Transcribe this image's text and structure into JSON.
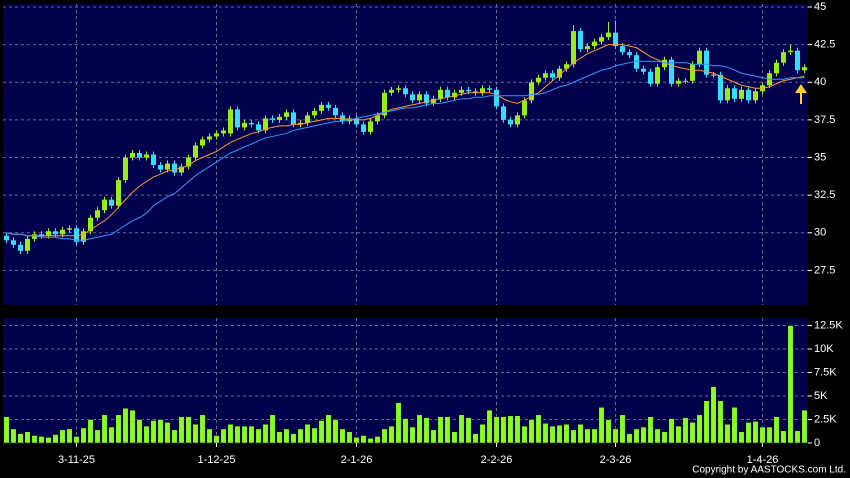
{
  "chart_data": [
    {
      "type": "candlestick",
      "open": [
        29.8,
        29.5,
        29.2,
        28.8,
        29.6,
        29.9,
        29.8,
        30.1,
        29.9,
        30.2,
        30.3,
        29.4,
        30.1,
        31.0,
        31.5,
        32.2,
        31.8,
        33.5,
        35.0,
        35.3,
        35.0,
        35.2,
        34.5,
        34.2,
        34.6,
        34.0,
        34.4,
        35.0,
        35.8,
        36.2,
        36.4,
        36.6,
        36.6,
        38.2,
        37.0,
        37.3,
        37.2,
        36.8,
        37.6,
        37.5,
        37.7,
        38.0,
        37.2,
        37.3,
        37.8,
        38.1,
        38.5,
        38.3,
        37.8,
        37.4,
        37.6,
        37.2,
        36.7,
        37.4,
        37.8,
        39.3,
        39.5,
        39.6,
        39.2,
        38.8,
        39.2,
        38.6,
        38.9,
        39.5,
        39.0,
        39.3,
        39.5,
        39.4,
        39.3,
        39.6,
        39.5,
        38.4,
        37.5,
        37.2,
        37.8,
        38.8,
        40.0,
        40.3,
        40.6,
        40.3,
        40.9,
        41.2,
        43.4,
        42.2,
        42.4,
        42.7,
        43.0,
        43.3,
        42.4,
        42.0,
        41.8,
        40.9,
        40.7,
        39.9,
        41.0,
        41.5,
        39.9,
        40.1,
        40.1,
        41.2,
        42.1,
        40.5,
        40.5,
        38.8,
        39.6,
        38.9,
        39.5,
        38.8,
        39.4,
        39.8,
        40.6,
        41.3,
        42.0,
        42.1,
        40.8
      ],
      "high": [
        30.0,
        29.7,
        29.4,
        29.8,
        30.1,
        30.1,
        30.3,
        30.3,
        30.4,
        30.5,
        30.5,
        30.3,
        31.2,
        31.7,
        32.4,
        32.4,
        33.7,
        35.2,
        35.5,
        35.5,
        35.4,
        35.4,
        34.7,
        34.8,
        34.8,
        34.6,
        35.2,
        36.0,
        36.4,
        36.6,
        36.8,
        37.0,
        38.4,
        38.4,
        37.5,
        37.5,
        37.4,
        37.8,
        37.8,
        37.9,
        38.2,
        38.2,
        37.5,
        38.0,
        38.3,
        38.7,
        38.7,
        38.5,
        38.0,
        37.8,
        37.8,
        37.4,
        37.6,
        38.0,
        39.5,
        39.7,
        39.8,
        39.8,
        39.4,
        39.4,
        39.4,
        39.1,
        39.7,
        39.7,
        39.5,
        39.7,
        39.7,
        39.6,
        39.8,
        39.8,
        39.7,
        38.6,
        37.7,
        38.0,
        39.0,
        40.2,
        40.5,
        40.8,
        40.8,
        41.1,
        41.4,
        43.8,
        43.6,
        42.6,
        42.9,
        43.2,
        44.0,
        44.1,
        42.6,
        42.2,
        42.0,
        41.1,
        40.9,
        41.2,
        41.7,
        41.7,
        40.3,
        40.3,
        41.4,
        42.3,
        42.3,
        40.7,
        40.7,
        39.8,
        39.8,
        39.7,
        39.7,
        39.6,
        40.0,
        40.8,
        41.5,
        42.2,
        42.5,
        42.3,
        41.2
      ],
      "low": [
        29.3,
        29.0,
        28.6,
        28.6,
        29.4,
        29.6,
        29.6,
        29.7,
        29.7,
        30.0,
        29.2,
        29.2,
        29.9,
        30.8,
        31.3,
        31.6,
        31.6,
        33.3,
        34.8,
        34.8,
        34.8,
        34.3,
        34.0,
        34.0,
        33.8,
        33.8,
        34.2,
        34.8,
        35.6,
        36.0,
        36.2,
        36.4,
        36.4,
        36.8,
        36.8,
        37.0,
        36.6,
        36.6,
        37.3,
        37.3,
        37.5,
        37.0,
        37.0,
        37.1,
        37.6,
        37.9,
        38.1,
        37.6,
        37.2,
        37.2,
        37.0,
        36.5,
        36.5,
        37.2,
        37.6,
        39.1,
        39.3,
        39.0,
        38.6,
        38.6,
        38.4,
        38.4,
        38.7,
        38.8,
        38.8,
        39.1,
        39.2,
        39.1,
        39.1,
        39.3,
        38.2,
        37.3,
        37.0,
        37.0,
        37.6,
        38.6,
        39.8,
        40.1,
        40.1,
        40.1,
        40.7,
        41.0,
        42.0,
        42.0,
        42.2,
        42.5,
        42.8,
        42.2,
        41.8,
        41.6,
        40.7,
        40.5,
        39.7,
        39.7,
        40.8,
        39.7,
        39.7,
        39.9,
        39.9,
        41.0,
        40.3,
        40.3,
        38.6,
        38.6,
        38.7,
        38.7,
        38.6,
        38.6,
        39.2,
        39.6,
        40.4,
        41.1,
        41.8,
        40.6,
        40.6
      ],
      "close": [
        29.5,
        29.2,
        28.8,
        29.6,
        29.9,
        29.8,
        30.1,
        29.9,
        30.2,
        30.3,
        29.4,
        30.1,
        31.0,
        31.5,
        32.2,
        31.8,
        33.5,
        35.0,
        35.3,
        35.0,
        35.2,
        34.5,
        34.2,
        34.6,
        34.0,
        34.4,
        35.0,
        35.8,
        36.2,
        36.4,
        36.6,
        36.8,
        38.2,
        37.0,
        37.3,
        37.2,
        36.8,
        37.6,
        37.5,
        37.7,
        38.0,
        37.2,
        37.3,
        37.8,
        38.1,
        38.5,
        38.3,
        37.8,
        37.4,
        37.6,
        37.2,
        36.7,
        37.4,
        37.8,
        39.3,
        39.5,
        39.6,
        39.2,
        38.8,
        39.2,
        38.6,
        38.9,
        39.5,
        39.0,
        39.3,
        39.5,
        39.4,
        39.3,
        39.6,
        39.5,
        38.4,
        37.5,
        37.2,
        37.8,
        38.8,
        40.0,
        40.3,
        40.6,
        40.3,
        40.9,
        41.2,
        43.4,
        42.2,
        42.4,
        42.7,
        43.0,
        43.3,
        42.4,
        42.0,
        41.8,
        40.9,
        40.7,
        39.9,
        41.0,
        41.5,
        39.9,
        40.1,
        40.1,
        41.2,
        42.1,
        40.5,
        40.5,
        38.8,
        39.6,
        38.9,
        39.5,
        38.8,
        39.4,
        39.8,
        40.6,
        41.3,
        42.0,
        42.1,
        40.8,
        41.0
      ],
      "up_color": "#99ee11",
      "down_color": "#33ddff",
      "lines": [
        {
          "color": "#ff9933",
          "values": [
            30.0,
            29.9,
            29.9,
            29.8,
            29.8,
            29.8,
            29.8,
            29.8,
            29.8,
            29.8,
            29.8,
            29.9,
            30.2,
            30.5,
            30.8,
            31.2,
            31.7,
            32.2,
            32.7,
            33.1,
            33.4,
            33.7,
            33.9,
            34.1,
            34.2,
            34.3,
            34.5,
            34.8,
            35.0,
            35.2,
            35.4,
            35.7,
            36.0,
            36.2,
            36.4,
            36.6,
            36.7,
            36.9,
            37.0,
            37.1,
            37.1,
            37.2,
            37.2,
            37.3,
            37.4,
            37.5,
            37.6,
            37.6,
            37.6,
            37.5,
            37.5,
            37.5,
            37.6,
            37.8,
            38.0,
            38.2,
            38.3,
            38.4,
            38.5,
            38.6,
            38.7,
            38.8,
            38.9,
            39.0,
            39.1,
            39.2,
            39.3,
            39.3,
            39.3,
            39.3,
            39.2,
            38.9,
            38.7,
            38.6,
            38.8,
            39.1,
            39.3,
            39.7,
            40.1,
            40.5,
            40.9,
            41.3,
            41.6,
            41.9,
            42.1,
            42.3,
            42.5,
            42.5,
            42.5,
            42.4,
            42.3,
            42.0,
            41.7,
            41.5,
            41.3,
            41.1,
            41.0,
            40.9,
            40.8,
            40.8,
            40.7,
            40.6,
            40.4,
            40.2,
            40.0,
            39.8,
            39.7,
            39.6,
            39.6,
            39.7,
            39.9,
            40.1,
            40.2,
            40.3,
            40.4
          ]
        },
        {
          "color": "#3399ff",
          "values": [
            30.0,
            29.9,
            29.9,
            29.8,
            29.8,
            29.7,
            29.7,
            29.7,
            29.6,
            29.6,
            29.5,
            29.5,
            29.6,
            29.7,
            29.8,
            29.9,
            30.2,
            30.5,
            30.8,
            31.0,
            31.3,
            31.8,
            32.1,
            32.4,
            32.6,
            33.0,
            33.4,
            33.8,
            34.1,
            34.4,
            34.7,
            35.0,
            35.3,
            35.5,
            35.7,
            35.9,
            36.1,
            36.3,
            36.4,
            36.5,
            36.6,
            36.8,
            36.9,
            37.0,
            37.1,
            37.2,
            37.3,
            37.4,
            37.4,
            37.5,
            37.6,
            37.7,
            37.8,
            37.9,
            38.0,
            38.1,
            38.2,
            38.3,
            38.3,
            38.4,
            38.5,
            38.6,
            38.6,
            38.7,
            38.8,
            38.9,
            38.9,
            39.0,
            39.0,
            39.1,
            39.1,
            39.1,
            39.1,
            39.1,
            39.1,
            39.2,
            39.2,
            39.3,
            39.5,
            39.7,
            39.8,
            40.0,
            40.2,
            40.4,
            40.6,
            40.8,
            40.9,
            41.1,
            41.2,
            41.3,
            41.4,
            41.4,
            41.4,
            41.4,
            41.3,
            41.3,
            41.3,
            41.3,
            41.2,
            41.2,
            41.2,
            41.1,
            41.1,
            41.0,
            40.8,
            40.6,
            40.5,
            40.4,
            40.3,
            40.2,
            40.2,
            40.2,
            40.3,
            40.3,
            40.3
          ]
        }
      ],
      "ylim": [
        25.2,
        45.2
      ],
      "yticks": [
        27.5,
        30,
        32.5,
        35,
        37.5,
        40,
        42.5,
        45
      ],
      "grid": true
    },
    {
      "type": "bar",
      "categories": [
        null,
        null,
        null,
        null,
        null,
        null,
        null,
        null,
        null,
        null,
        "3-11-25",
        null,
        null,
        null,
        null,
        null,
        null,
        null,
        null,
        null,
        null,
        null,
        null,
        null,
        null,
        null,
        null,
        null,
        null,
        null,
        "1-12-25",
        null,
        null,
        null,
        null,
        null,
        null,
        null,
        null,
        null,
        null,
        null,
        null,
        null,
        null,
        null,
        null,
        null,
        null,
        null,
        "2-1-26",
        null,
        null,
        null,
        null,
        null,
        null,
        null,
        null,
        null,
        null,
        null,
        null,
        null,
        null,
        null,
        null,
        null,
        null,
        null,
        "2-2-26",
        null,
        null,
        null,
        null,
        null,
        null,
        null,
        null,
        null,
        null,
        null,
        null,
        null,
        null,
        null,
        null,
        "2-3-26",
        null,
        null,
        null,
        null,
        null,
        null,
        null,
        null,
        null,
        null,
        null,
        null,
        null,
        null,
        null,
        null,
        null,
        null,
        null,
        null,
        "1-4-26",
        null,
        null,
        null,
        null,
        null,
        null
      ],
      "values": [
        2800,
        1500,
        1000,
        1200,
        800,
        700,
        600,
        900,
        1400,
        1500,
        700,
        1600,
        2500,
        1400,
        3000,
        1700,
        3000,
        3700,
        3500,
        2500,
        1800,
        2400,
        2500,
        2200,
        1400,
        2800,
        2800,
        2000,
        3000,
        1500,
        800,
        1500,
        2000,
        1800,
        1800,
        1800,
        1500,
        2000,
        3000,
        1200,
        1500,
        1000,
        1500,
        2000,
        1600,
        2400,
        3000,
        2500,
        1500,
        1200,
        600,
        800,
        500,
        700,
        1500,
        1800,
        4300,
        2600,
        1700,
        3000,
        2700,
        1400,
        2800,
        2800,
        1200,
        3000,
        2700,
        1000,
        2000,
        3500,
        2800,
        2800,
        2900,
        2900,
        1800,
        2500,
        3000,
        2100,
        1800,
        1900,
        2000,
        1400,
        2000,
        1500,
        1500,
        3800,
        2500,
        1500,
        3000,
        1000,
        1500,
        1700,
        2800,
        1500,
        1200,
        2600,
        1800,
        2700,
        2200,
        3000,
        4500,
        6000,
        4500,
        2000,
        3800,
        1200,
        2200,
        2300,
        1700,
        1700,
        2800,
        1300,
        12500,
        1300,
        3500
      ],
      "color": "#88ff22",
      "ylim": [
        0,
        13300
      ],
      "yticks": [
        0,
        {
          "value": 2500,
          "label": "2.5K"
        },
        {
          "value": 5000,
          "label": "5K"
        },
        {
          "value": 7500,
          "label": "7.5K"
        },
        {
          "value": 10000,
          "label": "10K"
        },
        {
          "value": 12500,
          "label": "12.5K"
        }
      ],
      "grid": true
    }
  ],
  "copyright": "Copyright by AASTOCKS.com Ltd."
}
